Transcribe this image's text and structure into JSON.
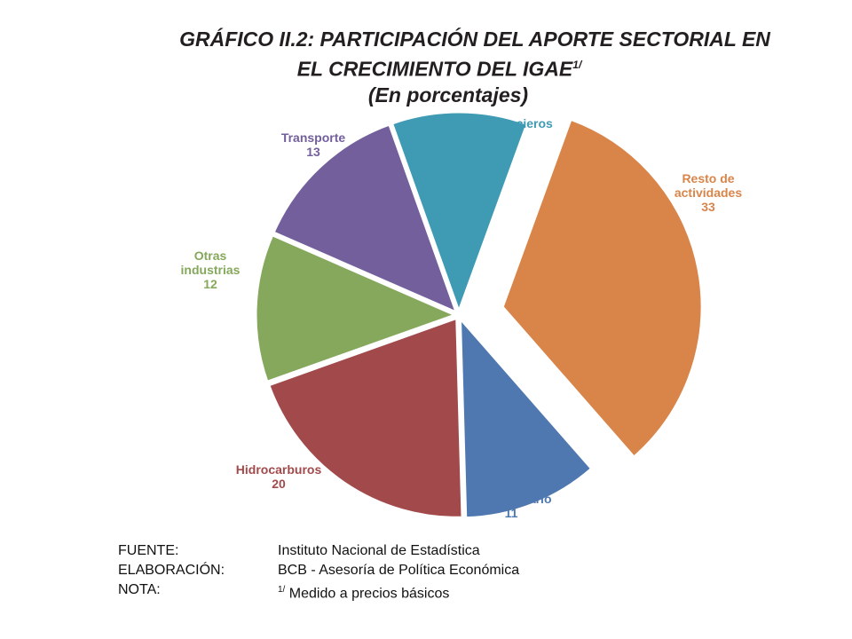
{
  "title": {
    "line1": "GRÁFICO II.2: PARTICIPACIÓN DEL APORTE SECTORIAL EN",
    "line2": "EL CRECIMIENTO DEL IGAE",
    "line2_sup": "1/",
    "subtitle": "(En porcentajes)"
  },
  "chart_data": {
    "type": "pie",
    "title": "GRÁFICO II.2: PARTICIPACIÓN DEL APORTE SECTORIAL EN EL CRECIMIENTO DEL IGAE",
    "subtitle": "(En porcentajes)",
    "slices": [
      {
        "label": "Resto de actividades",
        "value": 33,
        "color": "#d9854a",
        "exploded": true
      },
      {
        "label": "Agropecuario",
        "value": 11,
        "color": "#4f78b0",
        "exploded": false
      },
      {
        "label": "Hidrocarburos",
        "value": 20,
        "color": "#a24a4b",
        "exploded": false
      },
      {
        "label": "Otras industrias",
        "value": 12,
        "color": "#85a85c",
        "exploded": false
      },
      {
        "label": "Transporte",
        "value": 13,
        "color": "#725f9b",
        "exploded": false
      },
      {
        "label": "Serv. Financieros",
        "value": 11,
        "color": "#3f9bb3",
        "exploded": false
      }
    ]
  },
  "labels": [
    {
      "lines": [
        "Resto de",
        "actividades"
      ],
      "value": "33"
    },
    {
      "lines": [
        "Agropecuario"
      ],
      "value": "11"
    },
    {
      "lines": [
        "Hidrocarburos"
      ],
      "value": "20"
    },
    {
      "lines": [
        "Otras",
        "industrias"
      ],
      "value": "12"
    },
    {
      "lines": [
        "Transporte"
      ],
      "value": "13"
    },
    {
      "lines": [
        "Serv. Financieros"
      ],
      "value": "11"
    }
  ],
  "notes": {
    "fuente_key": "FUENTE:",
    "fuente_val": "Instituto Nacional de Estadística",
    "elab_key": "ELABORACIÓN:",
    "elab_val": "BCB - Asesoría de Política Económica",
    "nota_key": "NOTA:",
    "nota_sup": "1/",
    "nota_val": "Medido a precios básicos"
  }
}
